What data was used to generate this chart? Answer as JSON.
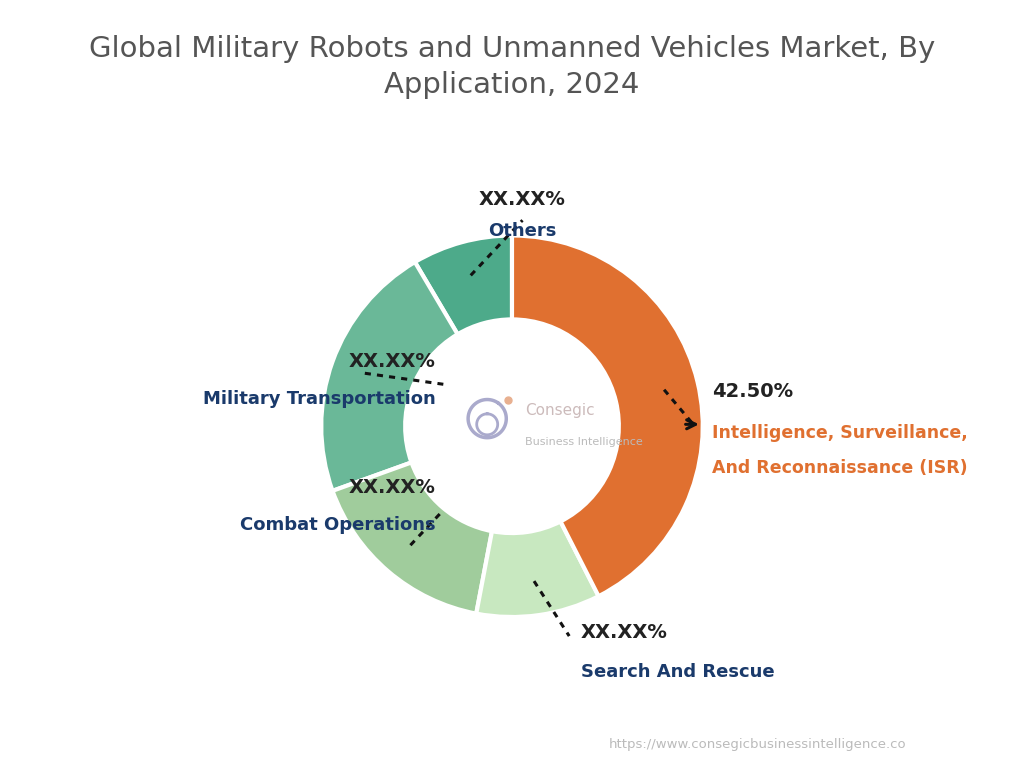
{
  "title": "Global Military Robots and Unmanned Vehicles Market, By\nApplication, 2024",
  "title_color": "#555555",
  "title_fontsize": 21,
  "segments": [
    {
      "label": "Intelligence, Surveillance,\nAnd Reconnaissance (ISR)",
      "value": 42.5,
      "display_pct": "42.50%",
      "color": "#E07030",
      "label_color": "#E07030"
    },
    {
      "label": "Search And Rescue",
      "value": 10.5,
      "display_pct": "XX.XX%",
      "color": "#C8E8C0",
      "label_color": "#1A3A6B"
    },
    {
      "label": "Combat Operations",
      "value": 16.5,
      "display_pct": "XX.XX%",
      "color": "#A0CC9C",
      "label_color": "#1A3A6B"
    },
    {
      "label": "Military Transportation",
      "value": 22.0,
      "display_pct": "XX.XX%",
      "color": "#6AB898",
      "label_color": "#1A3A6B"
    },
    {
      "label": "Others",
      "value": 8.5,
      "display_pct": "XX.XX%",
      "color": "#4DAA8A",
      "label_color": "#1A3A6B"
    }
  ],
  "pct_color": "#222222",
  "dot_color": "#222222",
  "bg_color": "#FFFFFF",
  "watermark": "https://www.consegicbusinessintelligence.co",
  "watermark_color": "#BBBBBB"
}
